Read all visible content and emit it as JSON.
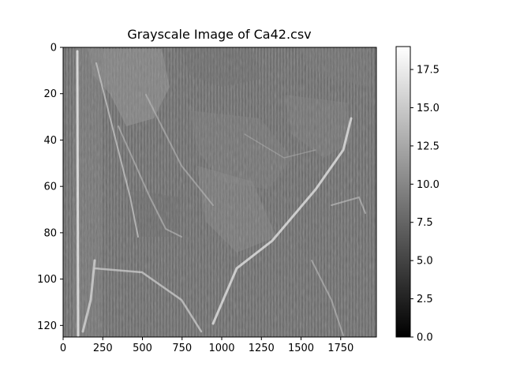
{
  "chart_data": {
    "type": "heatmap",
    "title": "Grayscale Image of Ca42.csv",
    "xlabel": "",
    "ylabel": "",
    "colormap": "gray",
    "xlim": [
      0,
      1975
    ],
    "ylim": [
      125,
      0
    ],
    "x_ticks": [
      "0",
      "250",
      "500",
      "750",
      "1000",
      "1250",
      "1500",
      "1750"
    ],
    "y_ticks": [
      "0",
      "20",
      "40",
      "60",
      "80",
      "100",
      "120"
    ],
    "colorbar": {
      "min": 0.0,
      "max": 19.0,
      "ticks": [
        "0.0",
        "2.5",
        "5.0",
        "7.5",
        "10.0",
        "12.5",
        "15.0",
        "17.5"
      ]
    },
    "grid": false
  }
}
